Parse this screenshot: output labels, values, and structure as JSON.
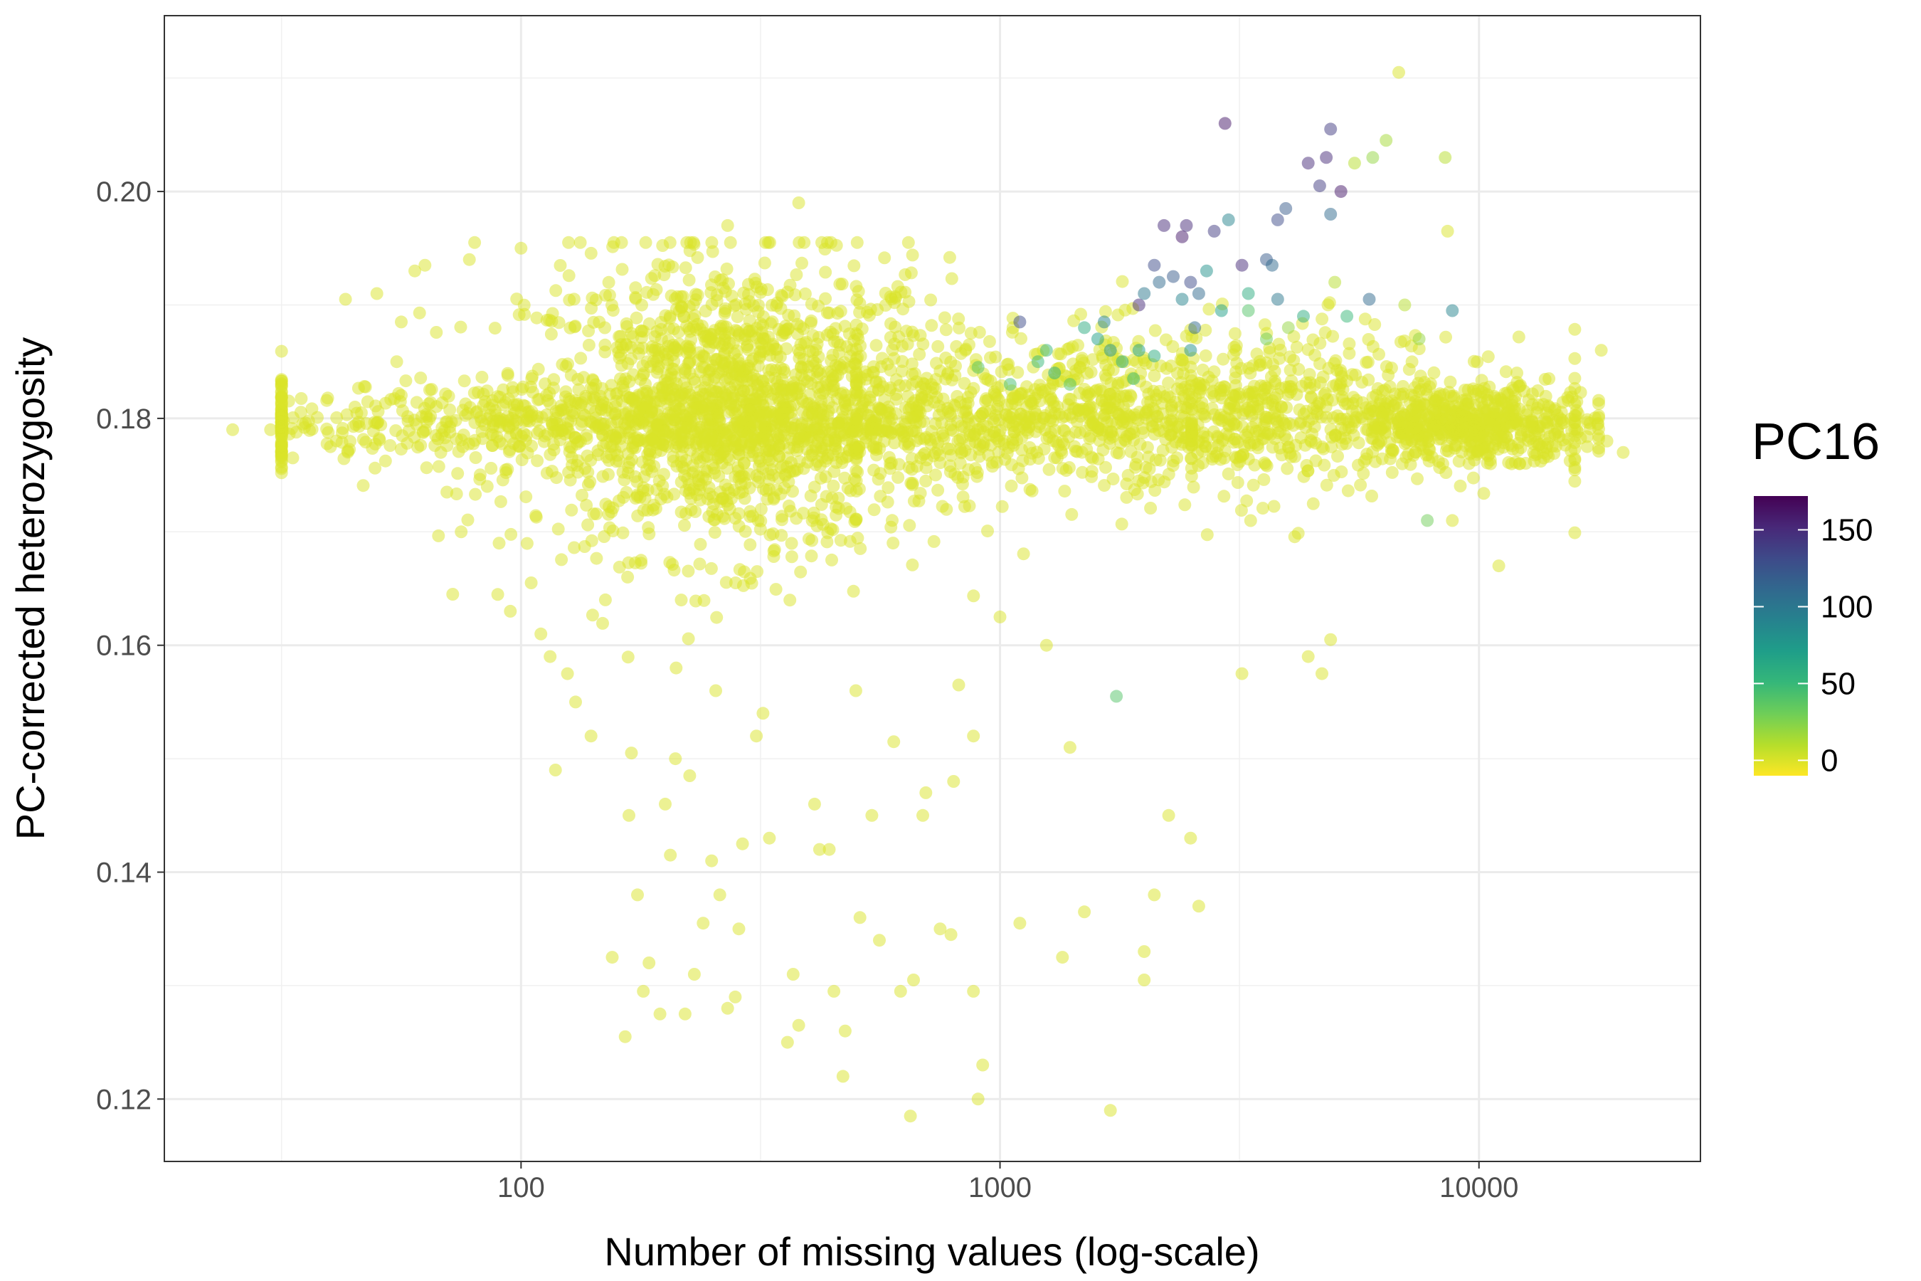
{
  "chart_data": {
    "type": "scatter",
    "title": "",
    "xlabel": "Number of missing values (log-scale)",
    "ylabel": "PC-corrected heterozygosity",
    "x_scale": "log10",
    "xlim": [
      18,
      29000
    ],
    "ylim": [
      0.1145,
      0.2155
    ],
    "x_ticks": [
      100,
      1000,
      10000
    ],
    "x_tick_labels": [
      "100",
      "1000",
      "10000"
    ],
    "y_ticks": [
      0.12,
      0.14,
      0.16,
      0.18,
      0.2
    ],
    "y_tick_labels": [
      "0.12",
      "0.14",
      "0.16",
      "0.18",
      "0.20"
    ],
    "grid": true,
    "theme": "bw",
    "point_opacity": 0.5,
    "legend": {
      "title": "PC16",
      "position": "right",
      "type": "colorbar",
      "range": [
        -10,
        172
      ],
      "ticks": [
        0,
        50,
        100,
        150
      ],
      "tick_labels": [
        "0",
        "50",
        "100",
        "150"
      ],
      "palette": [
        "#FDE725",
        "#B5DE2B",
        "#6ECE58",
        "#35B779",
        "#1F9E89",
        "#26828E",
        "#31688E",
        "#3E4A89",
        "#482878",
        "#440154"
      ]
    },
    "points": [
      [
        25,
        0.179,
        0
      ],
      [
        30,
        0.179,
        0
      ],
      [
        35,
        0.1795,
        0
      ],
      [
        40,
        0.1775,
        0
      ],
      [
        45,
        0.181,
        0
      ],
      [
        43,
        0.1905,
        0
      ],
      [
        50,
        0.191,
        0
      ],
      [
        55,
        0.185,
        0
      ],
      [
        60,
        0.193,
        0
      ],
      [
        63,
        0.1935,
        0
      ],
      [
        68,
        0.177,
        0
      ],
      [
        70,
        0.1735,
        0
      ],
      [
        72,
        0.1645,
        0
      ],
      [
        75,
        0.17,
        0
      ],
      [
        78,
        0.194,
        0
      ],
      [
        80,
        0.1955,
        0
      ],
      [
        85,
        0.174,
        0
      ],
      [
        90,
        0.169,
        0
      ],
      [
        95,
        0.163,
        0
      ],
      [
        100,
        0.195,
        0
      ],
      [
        105,
        0.1655,
        0
      ],
      [
        110,
        0.161,
        0
      ],
      [
        115,
        0.159,
        0
      ],
      [
        118,
        0.149,
        0
      ],
      [
        125,
        0.1575,
        0
      ],
      [
        130,
        0.155,
        0
      ],
      [
        140,
        0.152,
        0
      ],
      [
        150,
        0.164,
        0
      ],
      [
        155,
        0.1325,
        0
      ],
      [
        165,
        0.1255,
        0
      ],
      [
        168,
        0.145,
        0
      ],
      [
        170,
        0.1505,
        0
      ],
      [
        175,
        0.138,
        0
      ],
      [
        180,
        0.1295,
        0
      ],
      [
        185,
        0.132,
        0
      ],
      [
        195,
        0.1275,
        0
      ],
      [
        200,
        0.146,
        0
      ],
      [
        205,
        0.1415,
        0
      ],
      [
        210,
        0.15,
        0
      ],
      [
        220,
        0.1275,
        0
      ],
      [
        225,
        0.1485,
        0
      ],
      [
        230,
        0.131,
        0
      ],
      [
        240,
        0.1355,
        0
      ],
      [
        250,
        0.141,
        0
      ],
      [
        255,
        0.156,
        0
      ],
      [
        260,
        0.138,
        0
      ],
      [
        270,
        0.128,
        0
      ],
      [
        280,
        0.129,
        0
      ],
      [
        285,
        0.135,
        0
      ],
      [
        290,
        0.1425,
        0
      ],
      [
        270,
        0.197,
        0
      ],
      [
        310,
        0.152,
        0
      ],
      [
        320,
        0.154,
        0
      ],
      [
        330,
        0.143,
        0
      ],
      [
        360,
        0.125,
        0
      ],
      [
        370,
        0.131,
        0
      ],
      [
        380,
        0.1265,
        0
      ],
      [
        380,
        0.199,
        0
      ],
      [
        410,
        0.146,
        0
      ],
      [
        420,
        0.142,
        0
      ],
      [
        440,
        0.142,
        0
      ],
      [
        450,
        0.1295,
        0
      ],
      [
        470,
        0.122,
        0
      ],
      [
        475,
        0.126,
        0
      ],
      [
        500,
        0.156,
        0
      ],
      [
        510,
        0.136,
        0
      ],
      [
        540,
        0.145,
        0
      ],
      [
        560,
        0.134,
        0
      ],
      [
        600,
        0.1515,
        0
      ],
      [
        620,
        0.1295,
        0
      ],
      [
        650,
        0.1185,
        0
      ],
      [
        660,
        0.1305,
        0
      ],
      [
        690,
        0.145,
        0
      ],
      [
        700,
        0.147,
        0
      ],
      [
        750,
        0.135,
        0
      ],
      [
        790,
        0.1345,
        0
      ],
      [
        800,
        0.148,
        0
      ],
      [
        820,
        0.1565,
        0
      ],
      [
        880,
        0.152,
        0
      ],
      [
        900,
        0.12,
        0
      ],
      [
        920,
        0.123,
        0
      ],
      [
        880,
        0.1295,
        0
      ],
      [
        1000,
        0.1625,
        0
      ],
      [
        1100,
        0.1355,
        0
      ],
      [
        1250,
        0.16,
        0
      ],
      [
        1350,
        0.1325,
        0
      ],
      [
        1400,
        0.151,
        0
      ],
      [
        1500,
        0.1365,
        0
      ],
      [
        1700,
        0.119,
        0
      ],
      [
        1750,
        0.1555,
        40
      ],
      [
        2000,
        0.133,
        0
      ],
      [
        2000,
        0.1305,
        0
      ],
      [
        2100,
        0.138,
        0
      ],
      [
        2250,
        0.145,
        0
      ],
      [
        2500,
        0.143,
        0
      ],
      [
        2600,
        0.137,
        0
      ],
      [
        3200,
        0.1575,
        0
      ],
      [
        4400,
        0.159,
        0
      ],
      [
        4700,
        0.1575,
        0
      ],
      [
        4900,
        0.1605,
        0
      ],
      [
        6800,
        0.2105,
        0
      ],
      [
        8500,
        0.203,
        10
      ],
      [
        8600,
        0.1965,
        0
      ],
      [
        6400,
        0.2045,
        15
      ],
      [
        6000,
        0.203,
        20
      ],
      [
        5500,
        0.2025,
        10
      ],
      [
        7500,
        0.187,
        20
      ],
      [
        7800,
        0.171,
        30
      ],
      [
        8800,
        0.171,
        0
      ],
      [
        9500,
        0.1825,
        0
      ],
      [
        12000,
        0.184,
        0
      ],
      [
        14000,
        0.1835,
        0
      ],
      [
        16000,
        0.179,
        0
      ],
      [
        18000,
        0.186,
        0
      ],
      [
        20000,
        0.177,
        0
      ],
      [
        18500,
        0.178,
        0
      ],
      [
        11000,
        0.167,
        0
      ],
      [
        13000,
        0.177,
        0
      ],
      [
        2950,
        0.206,
        160
      ],
      [
        4900,
        0.2055,
        140
      ],
      [
        4400,
        0.2025,
        150
      ],
      [
        4650,
        0.2005,
        140
      ],
      [
        4800,
        0.203,
        150
      ],
      [
        5150,
        0.2,
        160
      ],
      [
        3800,
        0.1975,
        130
      ],
      [
        3950,
        0.1985,
        120
      ],
      [
        4900,
        0.198,
        110
      ],
      [
        2200,
        0.197,
        150
      ],
      [
        2450,
        0.197,
        150
      ],
      [
        2400,
        0.196,
        160
      ],
      [
        2800,
        0.1965,
        140
      ],
      [
        3000,
        0.1975,
        90
      ],
      [
        3600,
        0.194,
        120
      ],
      [
        3700,
        0.1935,
        110
      ],
      [
        3200,
        0.1935,
        150
      ],
      [
        2100,
        0.1935,
        130
      ],
      [
        2150,
        0.192,
        110
      ],
      [
        2300,
        0.1925,
        120
      ],
      [
        1950,
        0.19,
        150
      ],
      [
        2000,
        0.191,
        100
      ],
      [
        2500,
        0.192,
        130
      ],
      [
        2600,
        0.191,
        110
      ],
      [
        2400,
        0.1905,
        90
      ],
      [
        2700,
        0.193,
        80
      ],
      [
        2900,
        0.1895,
        70
      ],
      [
        3300,
        0.191,
        60
      ],
      [
        3800,
        0.1905,
        100
      ],
      [
        4300,
        0.189,
        60
      ],
      [
        5300,
        0.189,
        50
      ],
      [
        5900,
        0.1905,
        110
      ],
      [
        8800,
        0.1895,
        90
      ],
      [
        1100,
        0.1885,
        130
      ],
      [
        1500,
        0.188,
        60
      ],
      [
        1600,
        0.187,
        70
      ],
      [
        1700,
        0.186,
        80
      ],
      [
        1800,
        0.185,
        60
      ],
      [
        1950,
        0.186,
        70
      ],
      [
        2100,
        0.1855,
        60
      ],
      [
        2500,
        0.186,
        80
      ],
      [
        2550,
        0.188,
        110
      ],
      [
        1650,
        0.1885,
        90
      ],
      [
        1250,
        0.186,
        50
      ],
      [
        1300,
        0.184,
        60
      ],
      [
        1200,
        0.185,
        50
      ],
      [
        1050,
        0.183,
        45
      ],
      [
        900,
        0.1845,
        40
      ],
      [
        1400,
        0.183,
        40
      ],
      [
        1900,
        0.1835,
        50
      ],
      [
        3300,
        0.1895,
        40
      ],
      [
        3600,
        0.187,
        30
      ],
      [
        4000,
        0.188,
        20
      ],
      [
        7000,
        0.19,
        10
      ],
      [
        5000,
        0.192,
        10
      ]
    ]
  }
}
